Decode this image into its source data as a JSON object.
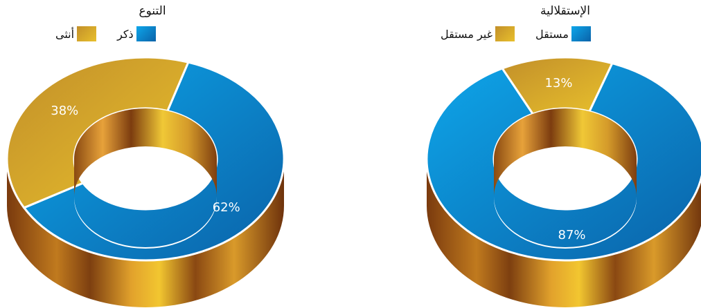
{
  "colors": {
    "blue": "#0c86d0",
    "gold": "#d4a62c",
    "bronze": "#8a4a12"
  },
  "chart_data": [
    {
      "type": "pie",
      "title": "التنوع",
      "categories": [
        "ذكر",
        "أنثى"
      ],
      "values": [
        62,
        38
      ],
      "labels": [
        "62%",
        "38%"
      ],
      "colors": [
        "#0c86d0",
        "#d4a62c"
      ],
      "legend": "top"
    },
    {
      "type": "pie",
      "title": "الإستقلالية",
      "categories": [
        "مستقل",
        "غير مستقل"
      ],
      "values": [
        87,
        13
      ],
      "labels": [
        "87%",
        "13%"
      ],
      "colors": [
        "#0c86d0",
        "#d4a62c"
      ],
      "legend": "top"
    }
  ]
}
